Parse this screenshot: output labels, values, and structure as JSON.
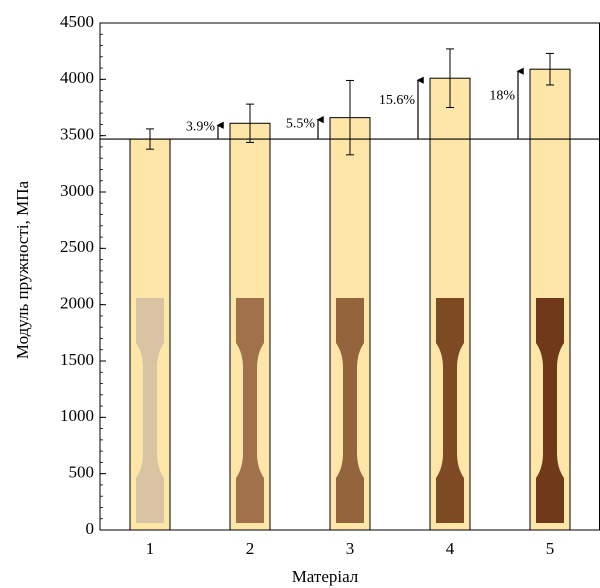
{
  "chart_data": {
    "type": "bar",
    "y_label": "Модуль пружності, МПа",
    "x_label": "Матеріал",
    "categories": [
      "1",
      "2",
      "3",
      "4",
      "5"
    ],
    "values": [
      3470,
      3610,
      3660,
      4010,
      4090
    ],
    "errors": [
      90,
      170,
      330,
      260,
      140
    ],
    "color": "#fde6a8",
    "reference_line": 3470,
    "annotations": [
      null,
      "3.9%",
      "5.5%",
      "15.6%",
      "18%"
    ],
    "ylim": [
      0,
      4500
    ],
    "yticks": [
      0,
      500,
      1000,
      1500,
      2000,
      2500,
      3000,
      3500,
      4000,
      4500
    ],
    "minor_tick_step": 100
  }
}
